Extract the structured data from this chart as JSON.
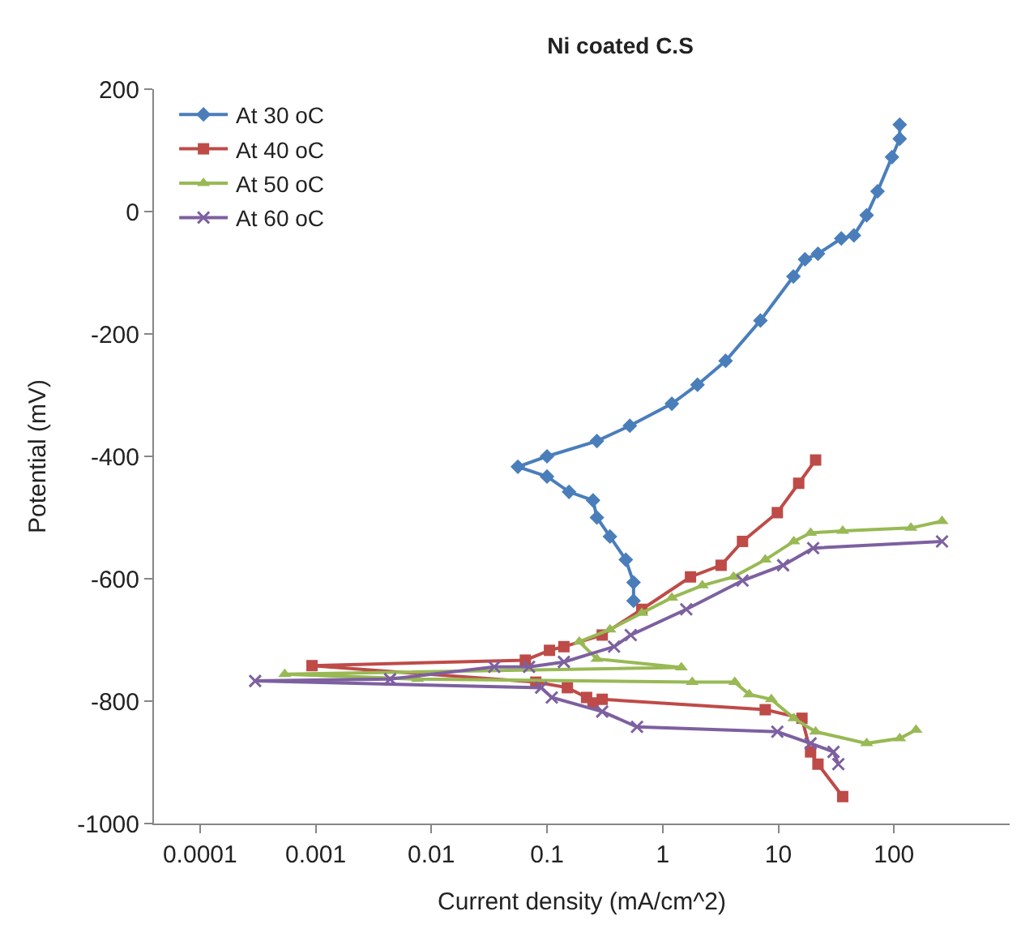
{
  "chart_data": {
    "type": "line",
    "title": "Ni coated C.S",
    "xlabel": "Current density (mA/cm^2)",
    "ylabel": "Potential (mV)",
    "log": "x",
    "xlim": [
      4e-05,
      1000
    ],
    "xticks": [
      {
        "value": 0.0001,
        "label": "0.0001"
      },
      {
        "value": 0.001,
        "label": "0.001"
      },
      {
        "value": 0.01,
        "label": "0.01"
      },
      {
        "value": 0.1,
        "label": "0.1"
      },
      1,
      10,
      100
    ],
    "ylim": [
      -1000,
      200
    ],
    "yticks": [
      -1000,
      -800,
      -600,
      -400,
      -200,
      0,
      200
    ],
    "legend": "top left",
    "series": [
      {
        "name": "At 30 oC",
        "color": "#4a7ebb",
        "marker": "diamond",
        "x": [
          0.56,
          0.56,
          0.48,
          0.35,
          0.27,
          0.25,
          0.155,
          0.1,
          0.056,
          0.1,
          0.27,
          0.52,
          1.2,
          2.0,
          3.5,
          7.0,
          13.5,
          17,
          22,
          35,
          45,
          58,
          72,
          96,
          112,
          112
        ],
        "values": [
          -636,
          -606,
          -569,
          -531,
          -500,
          -472,
          -458,
          -433,
          -417,
          -400,
          -375,
          -350,
          -314,
          -283,
          -244,
          -178,
          -106,
          -78,
          -69,
          -44,
          -39,
          -6,
          33,
          89,
          119,
          142
        ]
      },
      {
        "name": "At 40 oC",
        "color": "#be4b48",
        "marker": "square",
        "x": [
          36,
          22,
          19,
          16,
          7.7,
          0.3,
          0.25,
          0.22,
          0.15,
          0.08,
          0.00093,
          0.065,
          0.105,
          0.14,
          0.3,
          0.66,
          1.74,
          3.2,
          4.9,
          9.8,
          15,
          21
        ],
        "values": [
          -956,
          -903,
          -883,
          -828,
          -814,
          -797,
          -803,
          -794,
          -778,
          -769,
          -742,
          -733,
          -717,
          -711,
          -692,
          -650,
          -597,
          -578,
          -539,
          -492,
          -444,
          -406
        ]
      },
      {
        "name": "At 50 oC",
        "color": "#98b954",
        "marker": "triangle",
        "x": [
          155,
          112,
          58,
          21,
          13.6,
          8.7,
          5.6,
          4.2,
          1.8,
          0.0076,
          0.00054,
          1.45,
          0.27,
          0.19,
          0.35,
          0.66,
          1.2,
          2.2,
          4.1,
          7.7,
          13.6,
          19,
          36,
          140,
          260
        ],
        "values": [
          -847,
          -861,
          -869,
          -850,
          -828,
          -797,
          -789,
          -769,
          -769,
          -764,
          -756,
          -745,
          -731,
          -703,
          -683,
          -656,
          -631,
          -611,
          -597,
          -569,
          -539,
          -525,
          -522,
          -517,
          -506
        ]
      },
      {
        "name": "At 60 oC",
        "color": "#7d60a0",
        "marker": "cross",
        "x": [
          33,
          30,
          19,
          9.8,
          0.6,
          0.3,
          0.11,
          0.089,
          0.0003,
          0.0044,
          0.035,
          0.07,
          0.14,
          0.38,
          0.53,
          1.6,
          4.9,
          11,
          20,
          260
        ],
        "values": [
          -903,
          -883,
          -869,
          -850,
          -842,
          -817,
          -794,
          -778,
          -767,
          -764,
          -744,
          -744,
          -736,
          -711,
          -692,
          -650,
          -603,
          -578,
          -550,
          -539
        ]
      }
    ]
  }
}
